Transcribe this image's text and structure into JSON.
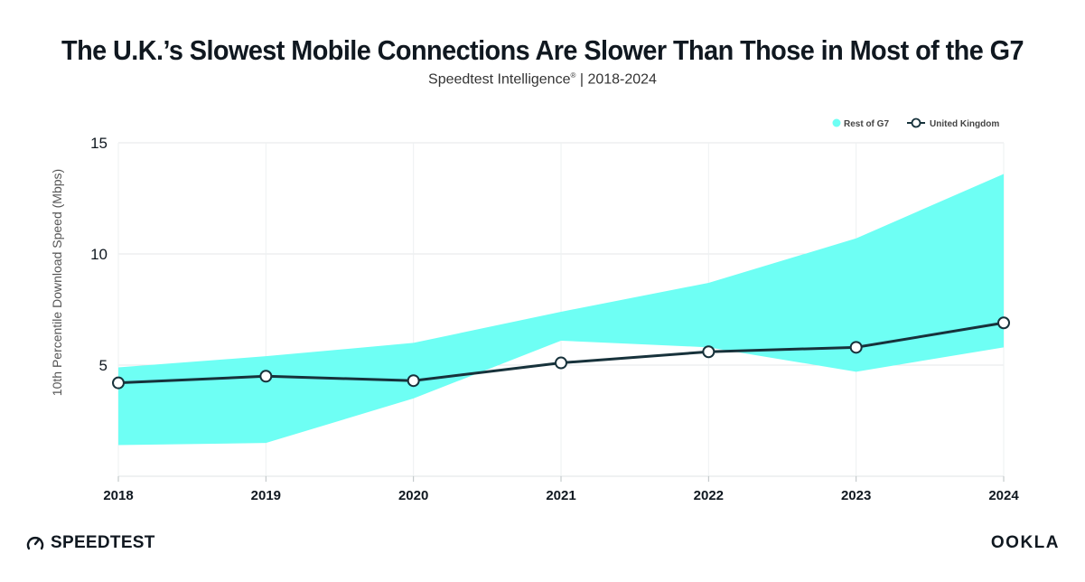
{
  "header": {
    "title": "The U.K.’s Slowest Mobile Connections Are Slower Than Those in Most of the G7",
    "subtitle_main": "Speedtest Intelligence",
    "subtitle_reg": "®",
    "subtitle_rest": " | 2018-2024"
  },
  "footer": {
    "left_brand": "SPEEDTEST",
    "left_icon": "speedometer-icon",
    "right_brand": "OOKLA"
  },
  "chart_data": {
    "type": "area",
    "ylabel": "10th Percentile Download Speed (Mbps)",
    "xlabel": "",
    "x": [
      "2018",
      "2019",
      "2020",
      "2021",
      "2022",
      "2023",
      "2024"
    ],
    "ylim": [
      0,
      15
    ],
    "yticks": [
      5,
      10,
      15
    ],
    "grid": true,
    "legend_position": "top-right",
    "series": [
      {
        "name": "Rest of G7",
        "kind": "range",
        "color": "#6efff4",
        "high": [
          4.9,
          5.4,
          6.0,
          7.4,
          8.7,
          10.7,
          13.6
        ],
        "low": [
          1.4,
          1.5,
          3.5,
          6.1,
          5.8,
          4.7,
          5.8
        ]
      },
      {
        "name": "United Kingdom",
        "kind": "line",
        "color": "#17323b",
        "values": [
          4.2,
          4.5,
          4.3,
          5.1,
          5.6,
          5.8,
          6.9
        ]
      }
    ]
  }
}
